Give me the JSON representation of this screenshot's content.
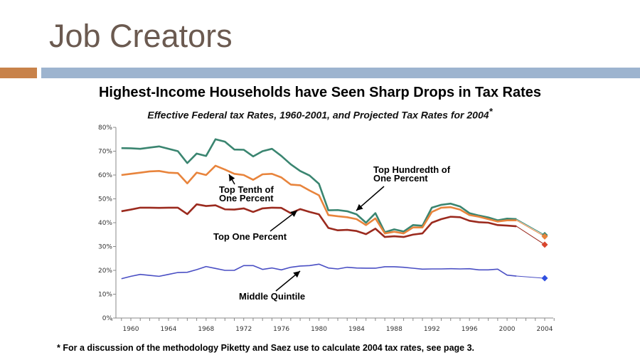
{
  "slide": {
    "title": "Job Creators",
    "heading": "Highest-Income Households have Seen Sharp Drops in Tax Rates",
    "subtitle": "Effective Federal tax Rates, 1960-2001, and Projected Tax Rates for 2004",
    "subtitle_mark": "*",
    "footnote": "* For a discussion of the methodology Piketty and Saez use to calculate 2004 tax rates, see page 3."
  },
  "colors": {
    "accent_orange": "#c8824a",
    "accent_blue": "#9db4cf"
  },
  "chart_data": {
    "type": "line",
    "title": "Highest-Income Households have Seen Sharp Drops in Tax Rates",
    "xlabel": "",
    "ylabel": "",
    "xlim": [
      1958,
      2005.5
    ],
    "ylim": [
      0,
      80
    ],
    "y_ticks": [
      "0%",
      "10%",
      "20%",
      "30%",
      "40%",
      "50%",
      "60%",
      "70%",
      "80%"
    ],
    "x_ticks": [
      "1960",
      "1964",
      "1968",
      "1972",
      "1976",
      "1980",
      "1984",
      "1988",
      "1992",
      "1996",
      "2000",
      "2004"
    ],
    "x_start": 1959,
    "series": [
      {
        "name": "Top Hundredth of One Percent",
        "label_lines": [
          "Top Hundredth of",
          "One Percent"
        ],
        "color": "#3a8570",
        "values": [
          71.3,
          71.2,
          71,
          71.5,
          72,
          71,
          70,
          65,
          69,
          68,
          75,
          74,
          70.7,
          70.6,
          67.8,
          70,
          71,
          68,
          64.5,
          61.7,
          59.8,
          56.3,
          45.2,
          45.3,
          44.8,
          43.5,
          40,
          44,
          36,
          37.2,
          36.3,
          39,
          38.7,
          46.3,
          47.5,
          48,
          46.8,
          44,
          43,
          42.2,
          41,
          41.7,
          41.5
        ],
        "projected_2004": 34.8
      },
      {
        "name": "Top Tenth of One Percent",
        "label_lines": [
          "Top Tenth of",
          "One Percent"
        ],
        "color": "#e8843c",
        "values": [
          60,
          60.5,
          61,
          61.5,
          61.7,
          61,
          60.8,
          56.5,
          61,
          60,
          63.9,
          62.3,
          60.5,
          60,
          58,
          60.3,
          60.5,
          59,
          56,
          55.7,
          53.5,
          51.5,
          43.2,
          42.7,
          42.3,
          41.5,
          39,
          41.8,
          35.5,
          36.2,
          35.5,
          38,
          38,
          44.5,
          46.3,
          46.5,
          45.5,
          43.2,
          42.5,
          41.5,
          40.5,
          41,
          41
        ],
        "projected_2004": 34.2
      },
      {
        "name": "Top One Percent",
        "label_lines": [
          "Top One Percent"
        ],
        "color": "#9b2a1e",
        "values": [
          44.8,
          45.5,
          46.3,
          46.3,
          46.2,
          46.3,
          46.3,
          43.6,
          47.7,
          47,
          47.3,
          45.6,
          45.5,
          46,
          44.5,
          46,
          46.3,
          46.2,
          44,
          45.7,
          44.5,
          43.5,
          37.8,
          36.8,
          37,
          36.5,
          35.2,
          37.5,
          34,
          34.3,
          34,
          35,
          35.5,
          40,
          41.5,
          42.5,
          42.3,
          40.8,
          40.2,
          40,
          39,
          38.8,
          38.5
        ],
        "projected_2004": 30.8,
        "marker_color": "#d9452e"
      },
      {
        "name": "Middle Quintile",
        "label_lines": [
          "Middle Quintile"
        ],
        "color": "#4a4fc4",
        "values": [
          16.5,
          17.5,
          18.3,
          17.9,
          17.5,
          18.3,
          19.1,
          19.2,
          20.3,
          21.6,
          20.8,
          20,
          20,
          22,
          22,
          20.4,
          21,
          20.2,
          21.3,
          21.8,
          22,
          22.6,
          21,
          20.6,
          21.3,
          21,
          20.9,
          20.9,
          21.5,
          21.5,
          21.3,
          20.9,
          20.5,
          20.6,
          20.6,
          20.7,
          20.6,
          20.7,
          20.2,
          20.2,
          20.5,
          18,
          17.6
        ],
        "projected_2004": 16.7,
        "marker_color": "#3050e0"
      }
    ]
  }
}
